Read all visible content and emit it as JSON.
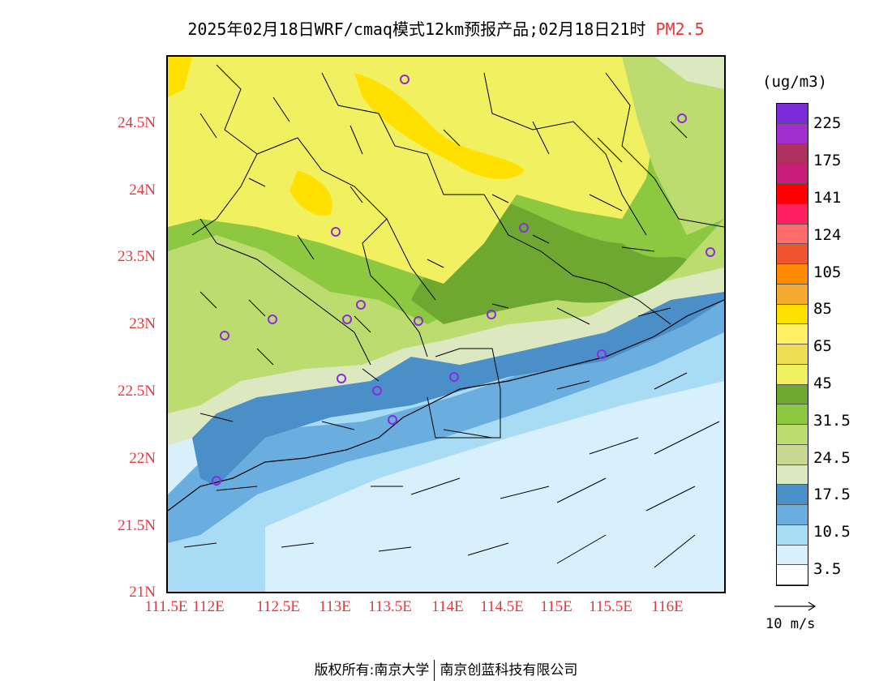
{
  "title": {
    "main": "2025年02月18日WRF/cmaq模式12km预报产品;02月18日21时",
    "variable": "PM2.5"
  },
  "axes": {
    "lat_labels": [
      "24.5N",
      "24N",
      "23.5N",
      "23N",
      "22.5N",
      "22N",
      "21.5N",
      "21N"
    ],
    "lon_labels": [
      "111.5E",
      "112E",
      "112.5E",
      "113E",
      "113.5E",
      "114E",
      "114.5E",
      "115E",
      "115.5E",
      "116E"
    ]
  },
  "colorbar": {
    "unit": "(ug/m3)",
    "labels": [
      "225",
      "175",
      "141",
      "124",
      "105",
      "85",
      "65",
      "45",
      "31.5",
      "24.5",
      "17.5",
      "10.5",
      "3.5"
    ],
    "colors": [
      "#7b2bd8",
      "#a12fcf",
      "#b03060",
      "#c81e7a",
      "#ff0000",
      "#ff2060",
      "#ff6a6a",
      "#ee5530",
      "#ff8c00",
      "#f5aa30",
      "#ffe000",
      "#fff066",
      "#eedd55",
      "#f0f060",
      "#6ea830",
      "#8cc840",
      "#bcdc70",
      "#c8d890",
      "#dce8c0",
      "#4a8fc8",
      "#6aaee0",
      "#a8dcf4",
      "#d8f0fc",
      "#ffffff"
    ]
  },
  "wind_reference": {
    "label": "10 m/s"
  },
  "footer": {
    "left": "版权所有:南京大学",
    "right": "南京创蓝科技有限公司"
  },
  "colors": {
    "label_red": "#e8363a",
    "station_marker": "#8a2be2"
  }
}
